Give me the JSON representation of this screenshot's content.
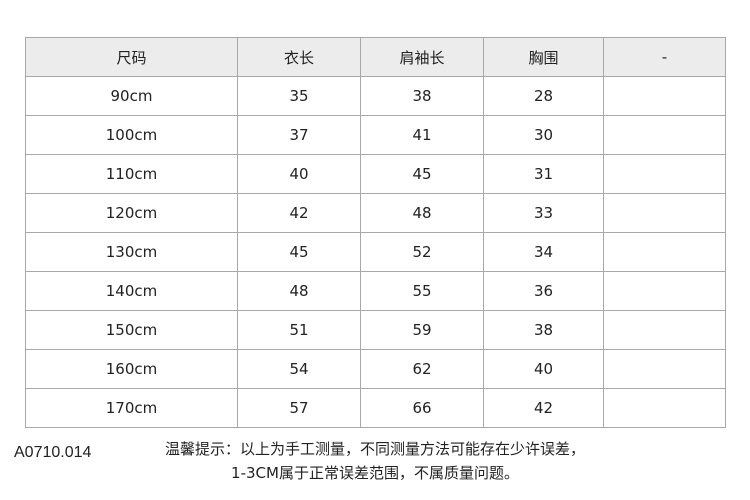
{
  "table": {
    "headers": [
      "尺码",
      "衣长",
      "肩袖长",
      "胸围",
      "-"
    ],
    "rows": [
      [
        "90cm",
        "35",
        "38",
        "28",
        ""
      ],
      [
        "100cm",
        "37",
        "41",
        "30",
        ""
      ],
      [
        "110cm",
        "40",
        "45",
        "31",
        ""
      ],
      [
        "120cm",
        "42",
        "48",
        "33",
        ""
      ],
      [
        "130cm",
        "45",
        "52",
        "34",
        ""
      ],
      [
        "140cm",
        "48",
        "55",
        "36",
        ""
      ],
      [
        "150cm",
        "51",
        "59",
        "38",
        ""
      ],
      [
        "160cm",
        "54",
        "62",
        "40",
        ""
      ],
      [
        "170cm",
        "57",
        "66",
        "42",
        ""
      ]
    ]
  },
  "notes": {
    "line1": "温馨提示：以上为手工测量，不同测量方法可能存在少许误差，",
    "line2": "1-3CM属于正常误差范围，不属质量问题。"
  },
  "product_code": "A0710.014"
}
